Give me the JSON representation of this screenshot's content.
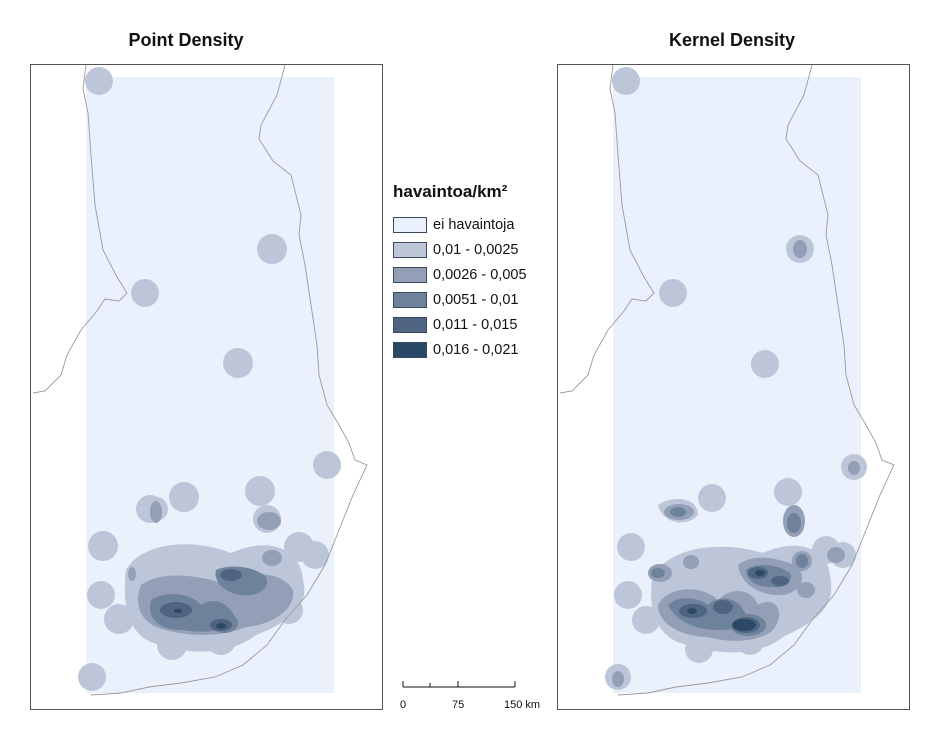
{
  "maps": {
    "left_title": "Point Density",
    "right_title": "Kernel Density"
  },
  "legend": {
    "title": "havaintoa/km²",
    "items": [
      {
        "label": "ei havaintoja",
        "color": "#eaf0fc"
      },
      {
        "label": "0,01 - 0,0025",
        "color": "#bcc6d8"
      },
      {
        "label": "0,0026 - 0,005",
        "color": "#929fb6"
      },
      {
        "label": "0,0051 - 0,01",
        "color": "#6f829c"
      },
      {
        "label": "0,011 - 0,015",
        "color": "#4e6480"
      },
      {
        "label": "0,016 - 0,021",
        "color": "#2b4866"
      }
    ]
  },
  "scale": {
    "tick_0": "0",
    "tick_1": "75",
    "tick_2": "150 km"
  },
  "colors": {
    "background_area": "#eaf0fc",
    "border_line": "#9a9a9a"
  }
}
